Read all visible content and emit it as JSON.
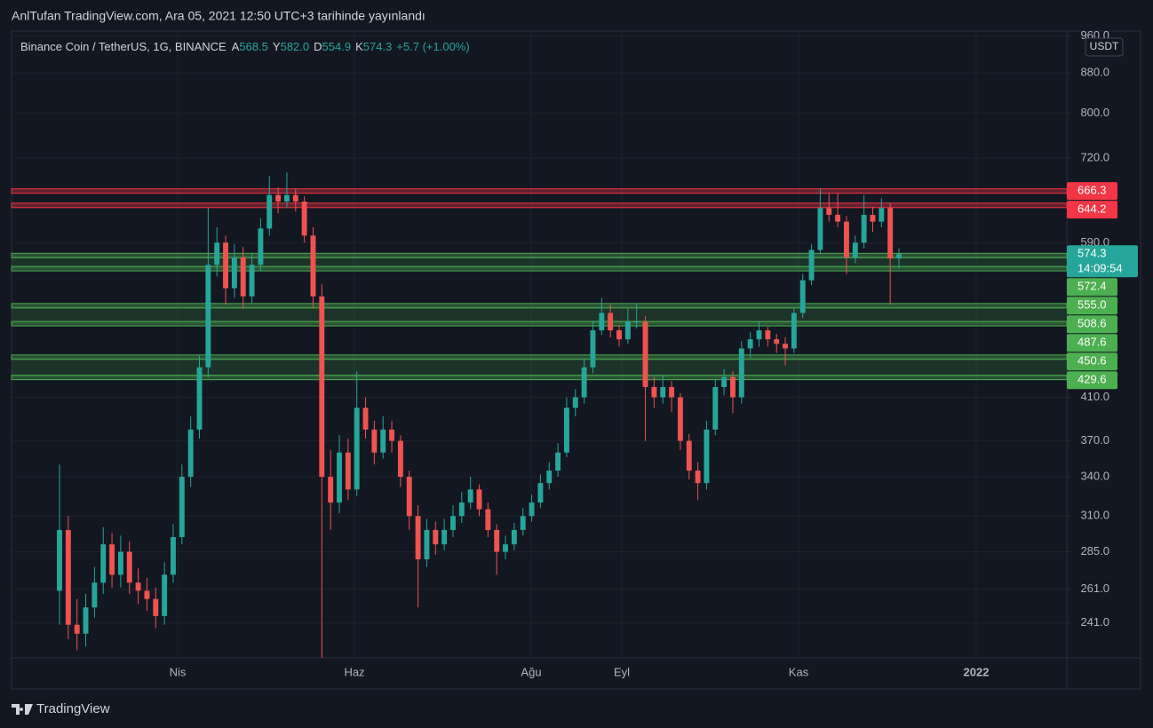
{
  "header": "AnlTufan TradingView.com, Ara 05, 2021 12:50 UTC+3 tarihinde yayınlandı",
  "footer": "TradingView",
  "chart_data": {
    "type": "candlestick",
    "symbol": "Binance Coin / TetherUS, 1G, BINANCE",
    "fields": [
      {
        "key": "A",
        "value": "568.5"
      },
      {
        "key": "Y",
        "value": "582.0"
      },
      {
        "key": "D",
        "value": "554.9"
      },
      {
        "key": "K",
        "value": "574.3"
      }
    ],
    "change": "+5.7 (+1.00%)",
    "currency": "USDT",
    "log_scale": true,
    "grid": true,
    "up_color": "#26a69a",
    "down_color": "#ef5350",
    "ylim": [
      222,
      971
    ],
    "yticks": [
      {
        "value": 960,
        "label": "960.0"
      },
      {
        "value": 880,
        "label": "880.0"
      },
      {
        "value": 800,
        "label": "800.0"
      },
      {
        "value": 720,
        "label": "720.0"
      },
      {
        "value": 590,
        "label": "590.0"
      },
      {
        "value": 410,
        "label": "410.0"
      },
      {
        "value": 370,
        "label": "370.0"
      },
      {
        "value": 340,
        "label": "340.0"
      },
      {
        "value": 310,
        "label": "310.0"
      },
      {
        "value": 285,
        "label": "285.0"
      },
      {
        "value": 261,
        "label": "261.0"
      },
      {
        "value": 241,
        "label": "241.0"
      }
    ],
    "xticks": [
      "Nis",
      "Haz",
      "Ağu",
      "Eyl",
      "Kas",
      "2022"
    ],
    "last_price": {
      "value": 574.3,
      "label": "574.3"
    },
    "countdown": "14:09:54",
    "levels": [
      {
        "value": 666.3,
        "label": "666.3",
        "color": "#f23645"
      },
      {
        "value": 644.2,
        "label": "644.2",
        "color": "#f23645"
      },
      {
        "value": 572.4,
        "label": "572.4",
        "color": "#4caf50"
      },
      {
        "value": 555.0,
        "label": "555.0",
        "color": "#4caf50"
      },
      {
        "value": 508.6,
        "label": "508.6",
        "color": "#4caf50"
      },
      {
        "value": 487.6,
        "label": "487.6",
        "color": "#4caf50"
      },
      {
        "value": 450.6,
        "label": "450.6",
        "color": "#4caf50"
      },
      {
        "value": 429.6,
        "label": "429.6",
        "color": "#4caf50"
      }
    ],
    "ohlc": [
      [
        260,
        350,
        240,
        300
      ],
      [
        300,
        310,
        232,
        240
      ],
      [
        240,
        255,
        226,
        235
      ],
      [
        235,
        258,
        228,
        250
      ],
      [
        250,
        275,
        244,
        265
      ],
      [
        265,
        302,
        258,
        290
      ],
      [
        290,
        298,
        262,
        270
      ],
      [
        270,
        296,
        262,
        285
      ],
      [
        285,
        292,
        258,
        265
      ],
      [
        265,
        274,
        252,
        260
      ],
      [
        260,
        268,
        248,
        255
      ],
      [
        255,
        262,
        238,
        245
      ],
      [
        245,
        278,
        240,
        270
      ],
      [
        270,
        304,
        265,
        295
      ],
      [
        295,
        350,
        290,
        340
      ],
      [
        340,
        392,
        332,
        380
      ],
      [
        380,
        452,
        372,
        440
      ],
      [
        440,
        640,
        430,
        560
      ],
      [
        560,
        612,
        545,
        590
      ],
      [
        590,
        600,
        510,
        530
      ],
      [
        530,
        588,
        518,
        570
      ],
      [
        570,
        584,
        505,
        520
      ],
      [
        520,
        575,
        512,
        560
      ],
      [
        560,
        625,
        552,
        610
      ],
      [
        610,
        690,
        600,
        660
      ],
      [
        660,
        672,
        632,
        650
      ],
      [
        650,
        696,
        640,
        660
      ],
      [
        660,
        670,
        635,
        650
      ],
      [
        650,
        658,
        590,
        600
      ],
      [
        600,
        612,
        505,
        520
      ],
      [
        520,
        535,
        222,
        340
      ],
      [
        340,
        362,
        300,
        320
      ],
      [
        320,
        375,
        312,
        360
      ],
      [
        360,
        372,
        322,
        330
      ],
      [
        330,
        436,
        325,
        400
      ],
      [
        400,
        410,
        372,
        380
      ],
      [
        380,
        388,
        350,
        360
      ],
      [
        360,
        392,
        355,
        380
      ],
      [
        380,
        388,
        360,
        370
      ],
      [
        370,
        375,
        332,
        340
      ],
      [
        340,
        345,
        300,
        310
      ],
      [
        310,
        318,
        250,
        280
      ],
      [
        280,
        308,
        275,
        300
      ],
      [
        300,
        306,
        283,
        290
      ],
      [
        290,
        308,
        286,
        300
      ],
      [
        300,
        318,
        295,
        310
      ],
      [
        310,
        328,
        305,
        320
      ],
      [
        320,
        340,
        315,
        330
      ],
      [
        330,
        334,
        310,
        315
      ],
      [
        315,
        320,
        295,
        300
      ],
      [
        300,
        304,
        270,
        285
      ],
      [
        285,
        296,
        280,
        290
      ],
      [
        290,
        305,
        286,
        300
      ],
      [
        300,
        316,
        296,
        310
      ],
      [
        310,
        326,
        306,
        320
      ],
      [
        320,
        342,
        316,
        335
      ],
      [
        335,
        352,
        330,
        345
      ],
      [
        345,
        368,
        340,
        360
      ],
      [
        360,
        410,
        356,
        400
      ],
      [
        400,
        418,
        392,
        410
      ],
      [
        410,
        448,
        404,
        440
      ],
      [
        440,
        490,
        434,
        480
      ],
      [
        480,
        518,
        475,
        500
      ],
      [
        500,
        510,
        472,
        480
      ],
      [
        480,
        486,
        462,
        470
      ],
      [
        470,
        505,
        465,
        490
      ],
      [
        490,
        512,
        482,
        490
      ],
      [
        490,
        496,
        370,
        420
      ],
      [
        420,
        430,
        400,
        410
      ],
      [
        410,
        432,
        404,
        420
      ],
      [
        420,
        426,
        396,
        410
      ],
      [
        410,
        414,
        362,
        370
      ],
      [
        370,
        376,
        338,
        345
      ],
      [
        345,
        352,
        322,
        335
      ],
      [
        335,
        388,
        330,
        380
      ],
      [
        380,
        428,
        375,
        420
      ],
      [
        420,
        438,
        412,
        430
      ],
      [
        430,
        436,
        395,
        410
      ],
      [
        410,
        468,
        404,
        460
      ],
      [
        460,
        478,
        450,
        470
      ],
      [
        470,
        490,
        462,
        480
      ],
      [
        480,
        484,
        462,
        470
      ],
      [
        470,
        476,
        455,
        465
      ],
      [
        465,
        472,
        442,
        460
      ],
      [
        460,
        506,
        455,
        500
      ],
      [
        500,
        548,
        494,
        540
      ],
      [
        540,
        588,
        534,
        580
      ],
      [
        580,
        670,
        574,
        640
      ],
      [
        640,
        662,
        620,
        630
      ],
      [
        630,
        662,
        612,
        620
      ],
      [
        620,
        628,
        548,
        570
      ],
      [
        570,
        600,
        562,
        590
      ],
      [
        590,
        660,
        582,
        630
      ],
      [
        630,
        642,
        605,
        620
      ],
      [
        620,
        655,
        612,
        640
      ],
      [
        640,
        648,
        510,
        568.5
      ],
      [
        568.5,
        582,
        554.9,
        574.3
      ]
    ]
  }
}
